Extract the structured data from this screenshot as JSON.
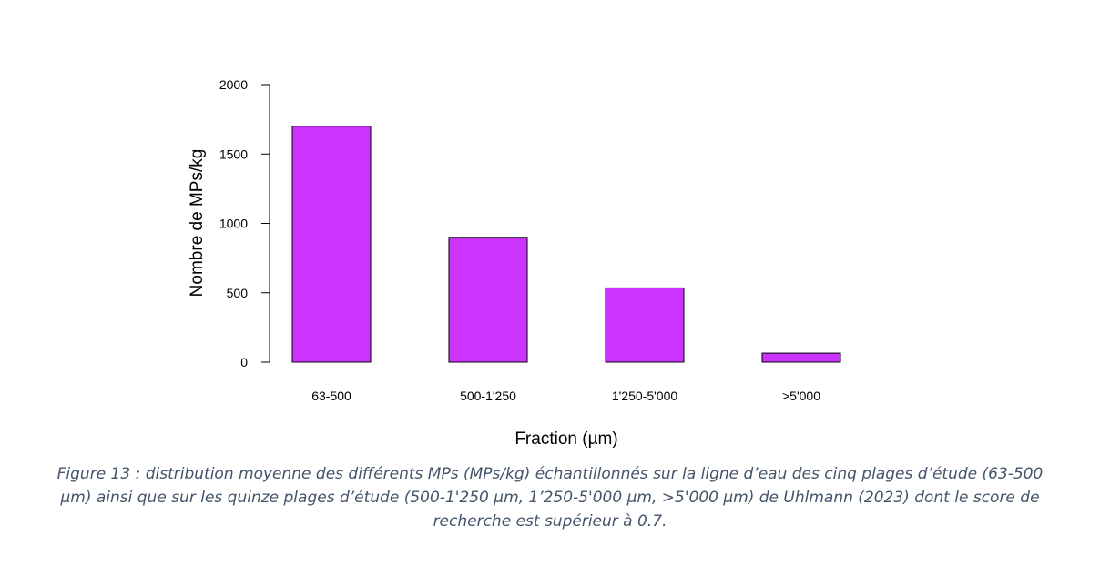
{
  "chart_data": {
    "type": "bar",
    "categories": [
      "63-500",
      "500-1'250",
      "1'250-5'000",
      ">5'000"
    ],
    "values": [
      1700,
      900,
      535,
      65
    ],
    "xlabel": "Fraction (µm)",
    "ylabel": "Nombre de MPs/kg",
    "ylim": [
      0,
      2000
    ],
    "yticks": [
      0,
      500,
      1000,
      1500,
      2000
    ],
    "grid": false,
    "bar_color": "#cc33ff",
    "bar_border": "#000000"
  },
  "caption": "Figure 13 : distribution moyenne des différents MPs (MPs/kg) échantillonnés sur la ligne d’eau des cinq plages d’étude (63-500 µm) ainsi que sur les quinze plages d’étude (500-1'250 µm, 1’250-5'000 µm, >5'000 µm) de Uhlmann (2023) dont le score de recherche est supérieur à 0.7."
}
